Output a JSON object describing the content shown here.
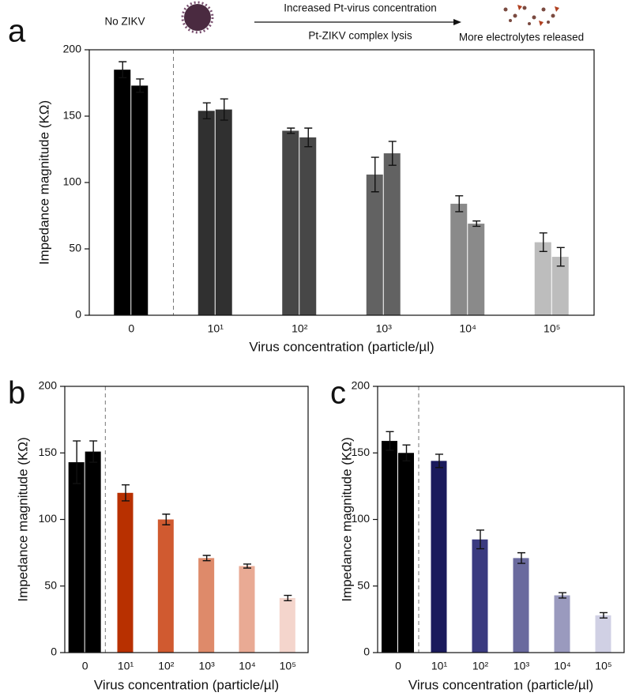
{
  "chart_data": [
    {
      "type": "bar",
      "panel_label": "a",
      "annotations": [
        "No ZIKV",
        "Increased Pt-virus concentration",
        "Pt-ZIKV complex lysis",
        "More electrolytes released"
      ],
      "xlabel": "Virus concentration (particle/µl)",
      "ylabel": "Impedance magnitude (KΩ)",
      "categories": [
        "0",
        "10¹",
        "10²",
        "10³",
        "10⁴",
        "10⁵"
      ],
      "colors": [
        "#000000",
        "#303030",
        "#474747",
        "#626262",
        "#8a8a8a",
        "#bdbdbd"
      ],
      "series": [
        {
          "values": [
            185,
            154,
            139,
            106,
            84,
            55
          ],
          "errors": [
            6,
            6,
            2,
            13,
            6,
            7
          ]
        },
        {
          "values": [
            173,
            155,
            134,
            122,
            69,
            44
          ],
          "errors": [
            5,
            8,
            7,
            9,
            2,
            7
          ]
        }
      ],
      "ylim": [
        0,
        200
      ],
      "yticks": [
        0,
        50,
        100,
        150,
        200
      ]
    },
    {
      "type": "bar",
      "panel_label": "b",
      "xlabel": "Virus concentration (particle/µl)",
      "ylabel": "Impedance magnitude (KΩ)",
      "categories": [
        "0",
        "10¹",
        "10²",
        "10³",
        "10⁴",
        "10⁵"
      ],
      "colors": [
        "#000000",
        "#b83000",
        "#d05a30",
        "#de8a6a",
        "#e9aa94",
        "#f4d5cc"
      ],
      "series": [
        {
          "values": [
            143,
            120,
            100,
            71,
            65,
            41
          ],
          "errors": [
            16,
            6,
            4,
            2,
            1.5,
            2
          ]
        },
        {
          "values": [
            151,
            null,
            null,
            null,
            null,
            null
          ],
          "errors": [
            8,
            null,
            null,
            null,
            null,
            null
          ]
        }
      ],
      "ylim": [
        0,
        200
      ],
      "yticks": [
        0,
        50,
        100,
        150,
        200
      ]
    },
    {
      "type": "bar",
      "panel_label": "c",
      "xlabel": "Virus concentration (particle/µl)",
      "ylabel": "Impedance magnitude (KΩ)",
      "categories": [
        "0",
        "10¹",
        "10²",
        "10³",
        "10⁴",
        "10⁵"
      ],
      "colors": [
        "#000000",
        "#1a1a5c",
        "#3a3a80",
        "#6a6a9e",
        "#9a9abe",
        "#d0d0e4"
      ],
      "series": [
        {
          "values": [
            159,
            144,
            85,
            71,
            43,
            28
          ],
          "errors": [
            7,
            5,
            7,
            4,
            2,
            2
          ]
        },
        {
          "values": [
            150,
            null,
            null,
            null,
            null,
            null
          ],
          "errors": [
            6,
            null,
            null,
            null,
            null,
            null
          ]
        }
      ],
      "ylim": [
        0,
        200
      ],
      "yticks": [
        0,
        50,
        100,
        150,
        200
      ]
    }
  ]
}
